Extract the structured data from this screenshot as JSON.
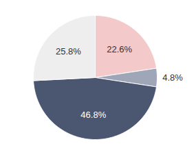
{
  "chart_data": {
    "type": "pie",
    "values": [
      22.6,
      4.8,
      46.8,
      25.8
    ],
    "value_labels": [
      "22.6%",
      "4.8%",
      "46.8%",
      "25.8%"
    ],
    "colors": [
      "#f4c9c9",
      "#9ea6b8",
      "#4b5670",
      "#eeeeee"
    ],
    "data_labels": true
  }
}
